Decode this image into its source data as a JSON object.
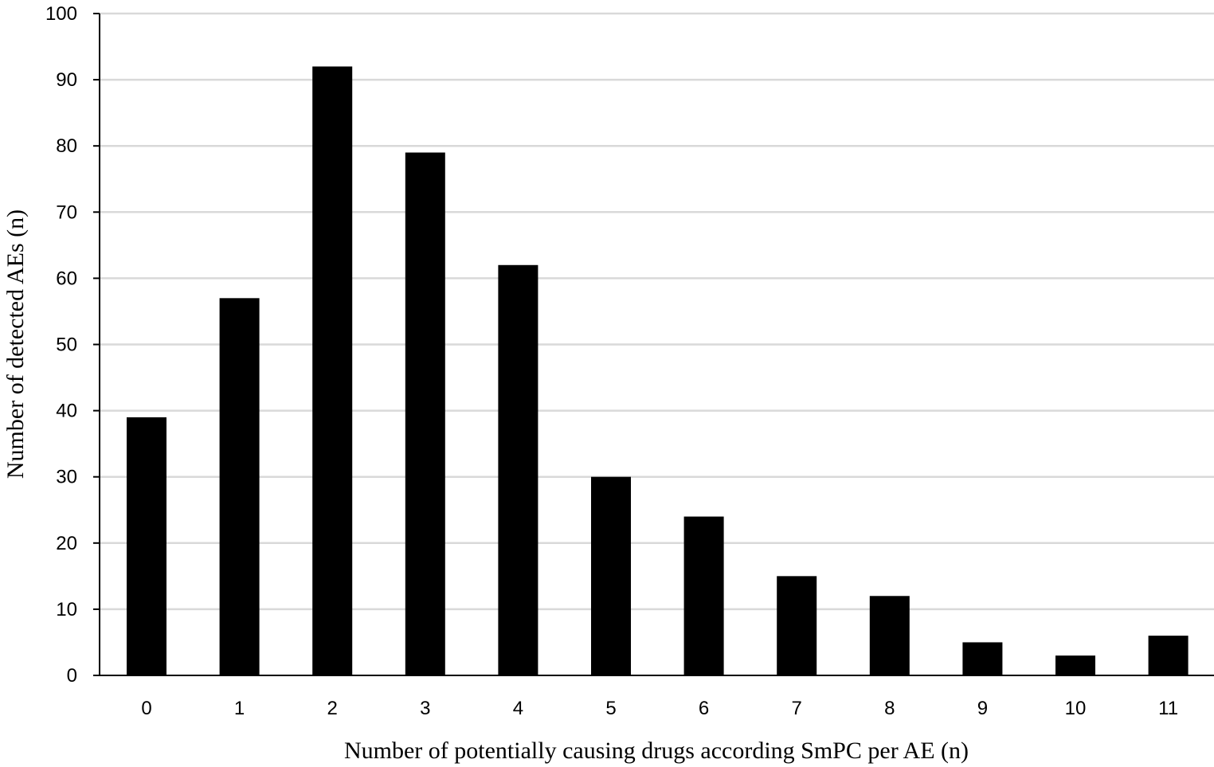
{
  "chart_data": {
    "type": "bar",
    "categories": [
      "0",
      "1",
      "2",
      "3",
      "4",
      "5",
      "6",
      "7",
      "8",
      "9",
      "10",
      "11"
    ],
    "values": [
      39,
      57,
      92,
      79,
      62,
      30,
      24,
      15,
      12,
      5,
      3,
      6
    ],
    "title": "",
    "xlabel": "Number of potentially causing drugs according SmPC per AE (n)",
    "ylabel": "Number of detected AEs (n)",
    "ylim": [
      0,
      100
    ],
    "yticks": [
      0,
      10,
      20,
      30,
      40,
      50,
      60,
      70,
      80,
      90,
      100
    ],
    "grid": true,
    "legend": "none",
    "colors": {
      "bar": "#000000",
      "grid": "#d9d9d9",
      "axis": "#000000"
    }
  }
}
